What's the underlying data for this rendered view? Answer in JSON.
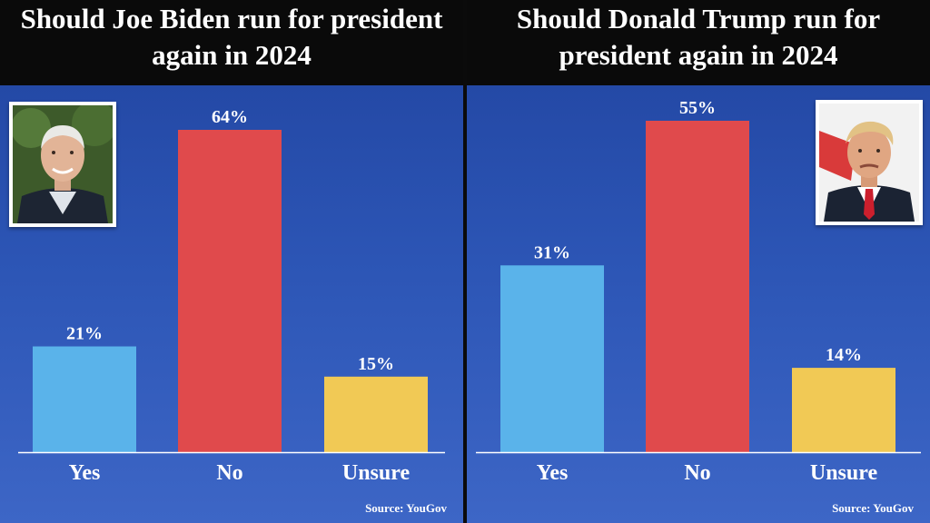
{
  "colors": {
    "yes": "#5ab3ea",
    "no": "#e04a4c",
    "unsure": "#f1c955",
    "axis": "#ffffff"
  },
  "source_label": "Source: YouGov",
  "chart_data": [
    {
      "type": "bar",
      "title": "Should Joe Biden run for president again in 2024",
      "categories": [
        "Yes",
        "No",
        "Unsure"
      ],
      "values": [
        21,
        64,
        15
      ],
      "value_labels": [
        "21%",
        "64%",
        "15%"
      ],
      "unit": "%",
      "ylim": [
        0,
        64
      ],
      "grid": false,
      "legend": "none",
      "photo_icon": "biden-portrait"
    },
    {
      "type": "bar",
      "title": "Should Donald Trump run for president again in 2024",
      "categories": [
        "Yes",
        "No",
        "Unsure"
      ],
      "values": [
        31,
        55,
        14
      ],
      "value_labels": [
        "31%",
        "55%",
        "14%"
      ],
      "unit": "%",
      "ylim": [
        0,
        55
      ],
      "grid": false,
      "legend": "none",
      "photo_icon": "trump-portrait"
    }
  ]
}
